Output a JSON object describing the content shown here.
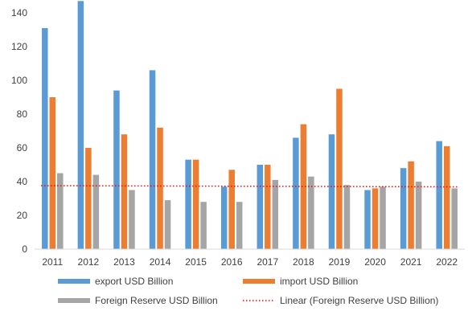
{
  "chart_data": {
    "type": "bar",
    "categories": [
      "2011",
      "2012",
      "2013",
      "2014",
      "2015",
      "2016",
      "2017",
      "2018",
      "2019",
      "2020",
      "2021",
      "2022"
    ],
    "series": [
      {
        "name": "export USD Billion",
        "color": "#5b9bd5",
        "values": [
          131,
          147,
          94,
          106,
          53,
          37,
          50,
          66,
          68,
          35,
          48,
          64
        ]
      },
      {
        "name": "import USD Billion",
        "color": "#ed7d31",
        "values": [
          90,
          60,
          68,
          72,
          53,
          47,
          50,
          74,
          95,
          36,
          52,
          61
        ]
      },
      {
        "name": "Foreign Reserve USD Billion",
        "color": "#a5a5a5",
        "values": [
          45,
          44,
          35,
          29,
          28,
          28,
          41,
          43,
          38,
          37,
          40,
          36
        ]
      }
    ],
    "trendline": {
      "name": "Linear (Foreign Reserve USD Billion)",
      "color": "#ff0000",
      "style": "dotted",
      "start": 37.6,
      "end": 36.9
    },
    "ylim": [
      0,
      140
    ],
    "yticks": [
      "0",
      "20",
      "40",
      "60",
      "80",
      "100",
      "120",
      "140"
    ],
    "grid": false,
    "legend_position": "bottom",
    "title": "",
    "xlabel": "",
    "ylabel": ""
  }
}
